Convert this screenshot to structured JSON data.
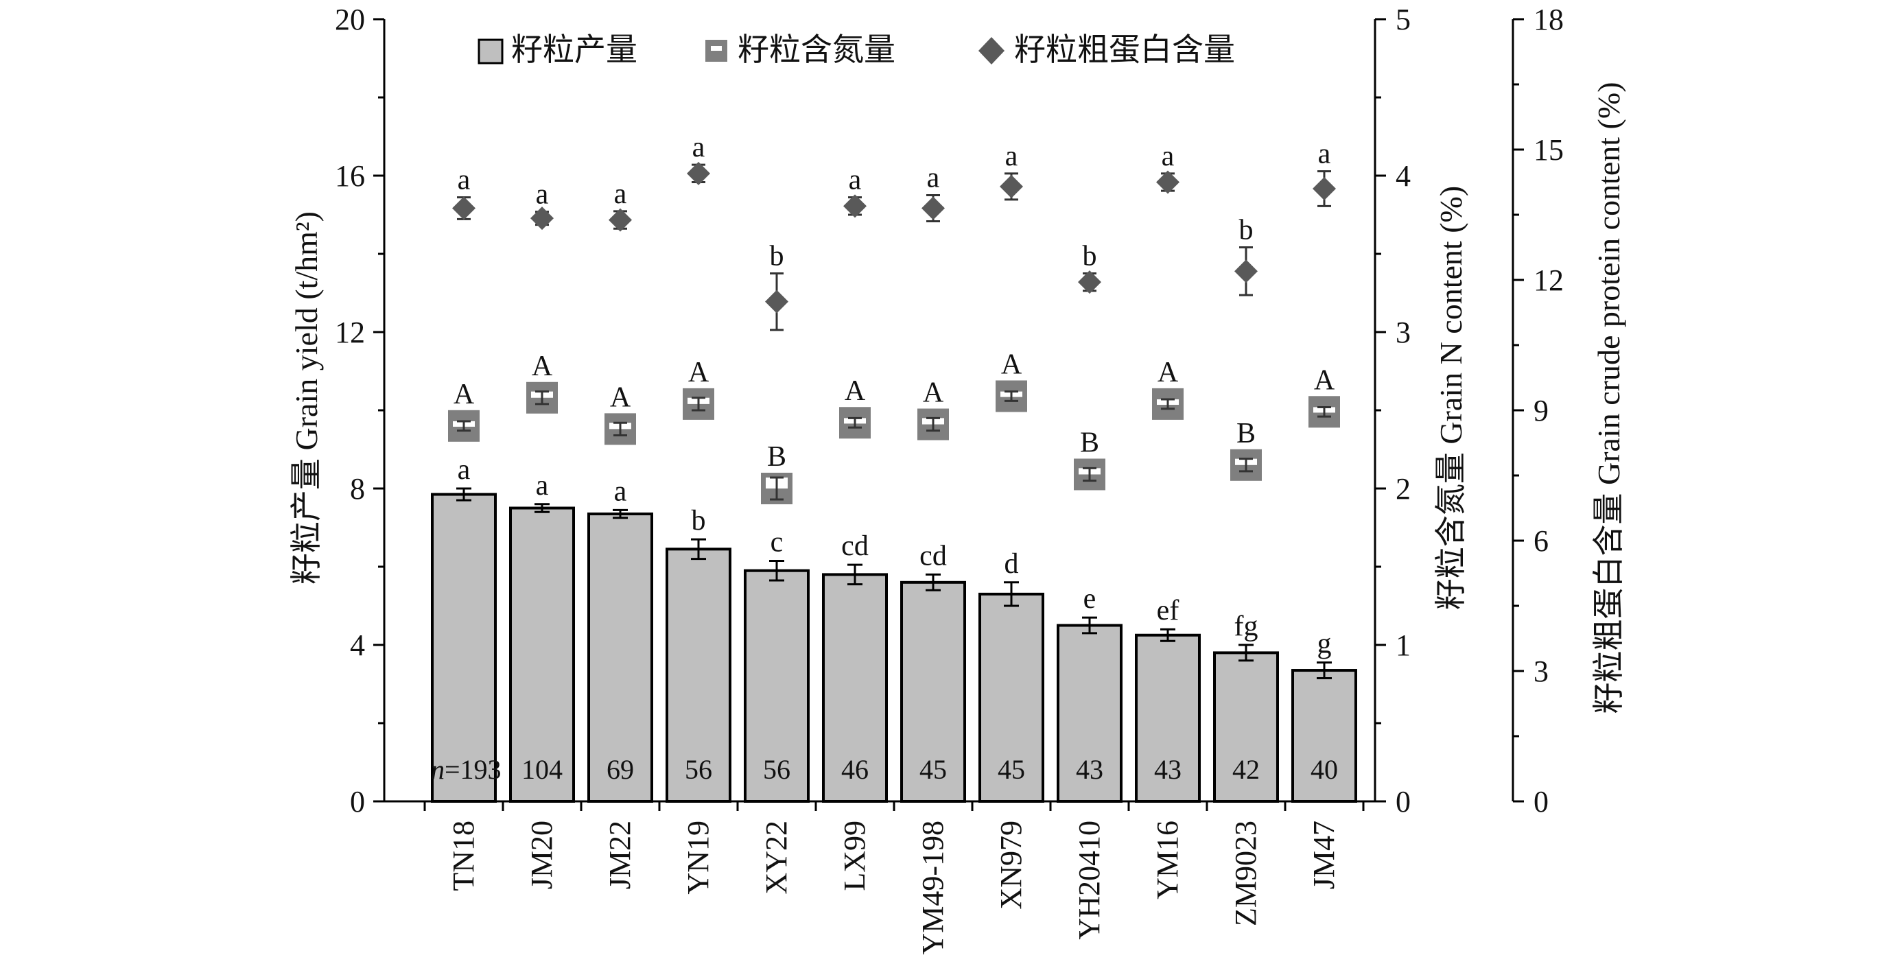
{
  "chart_data": {
    "type": "bar",
    "categories": [
      "TN18",
      "JM20",
      "JM22",
      "YN19",
      "XY22",
      "LX99",
      "YM49-198",
      "XN979",
      "YH20410",
      "YM16",
      "ZM9023",
      "JM47"
    ],
    "axes": {
      "left": {
        "label": "籽粒产量 Grain yield (t/hm²)",
        "range": [
          0,
          20
        ],
        "ticks": [
          "0",
          "4",
          "8",
          "12",
          "16",
          "20"
        ]
      },
      "right1": {
        "label": "籽粒含氮量 Grain N content (%)",
        "range": [
          0,
          5
        ],
        "ticks": [
          "0",
          "1",
          "2",
          "3",
          "4",
          "5"
        ]
      },
      "right2": {
        "label": "籽粒粗蛋白含量 Grain crude protein content (%)",
        "range": [
          0,
          18
        ],
        "ticks": [
          "0",
          "3",
          "6",
          "9",
          "12",
          "15",
          "18"
        ]
      }
    },
    "legend": {
      "position": "top",
      "entries": [
        "籽粒产量",
        "籽粒含氮量",
        "籽粒粗蛋白含量"
      ]
    },
    "series": [
      {
        "name": "籽粒产量",
        "axis": "left",
        "marker": "bar",
        "values": [
          7.85,
          7.5,
          7.35,
          6.45,
          5.9,
          5.8,
          5.6,
          5.3,
          4.5,
          4.25,
          3.8,
          3.35
        ],
        "errors": [
          0.15,
          0.1,
          0.1,
          0.25,
          0.25,
          0.25,
          0.2,
          0.3,
          0.2,
          0.15,
          0.2,
          0.2
        ],
        "letters": [
          "a",
          "a",
          "a",
          "b",
          "c",
          "cd",
          "cd",
          "d",
          "e",
          "ef",
          "fg",
          "g"
        ]
      },
      {
        "name": "籽粒含氮量",
        "axis": "right1",
        "marker": "square",
        "values": [
          2.4,
          2.58,
          2.38,
          2.54,
          2.0,
          2.42,
          2.41,
          2.59,
          2.09,
          2.54,
          2.15,
          2.49
        ],
        "errors": [
          0.03,
          0.04,
          0.04,
          0.04,
          0.07,
          0.03,
          0.04,
          0.03,
          0.04,
          0.03,
          0.04,
          0.03
        ],
        "letters": [
          "A",
          "A",
          "A",
          "A",
          "B",
          "A",
          "A",
          "A",
          "B",
          "A",
          "B",
          "A"
        ]
      },
      {
        "name": "籽粒粗蛋白含量",
        "axis": "right2",
        "marker": "diamond",
        "values": [
          13.65,
          13.42,
          13.38,
          14.45,
          11.5,
          13.7,
          13.65,
          14.15,
          11.95,
          14.25,
          12.2,
          14.1
        ],
        "errors": [
          0.25,
          0.15,
          0.2,
          0.2,
          0.65,
          0.2,
          0.3,
          0.3,
          0.2,
          0.2,
          0.55,
          0.4
        ],
        "letters": [
          "a",
          "a",
          "a",
          "a",
          "b",
          "a",
          "a",
          "a",
          "b",
          "a",
          "b",
          "a"
        ]
      }
    ],
    "n_prefix": "n",
    "n_values": [
      "=193",
      "104",
      "69",
      "56",
      "56",
      "46",
      "45",
      "45",
      "43",
      "43",
      "42",
      "40"
    ],
    "colors": {
      "bar_fill": "#bfbfbf",
      "square_fill": "#7f7f7f",
      "diamond_fill": "#595959",
      "axis": "#000000"
    }
  }
}
